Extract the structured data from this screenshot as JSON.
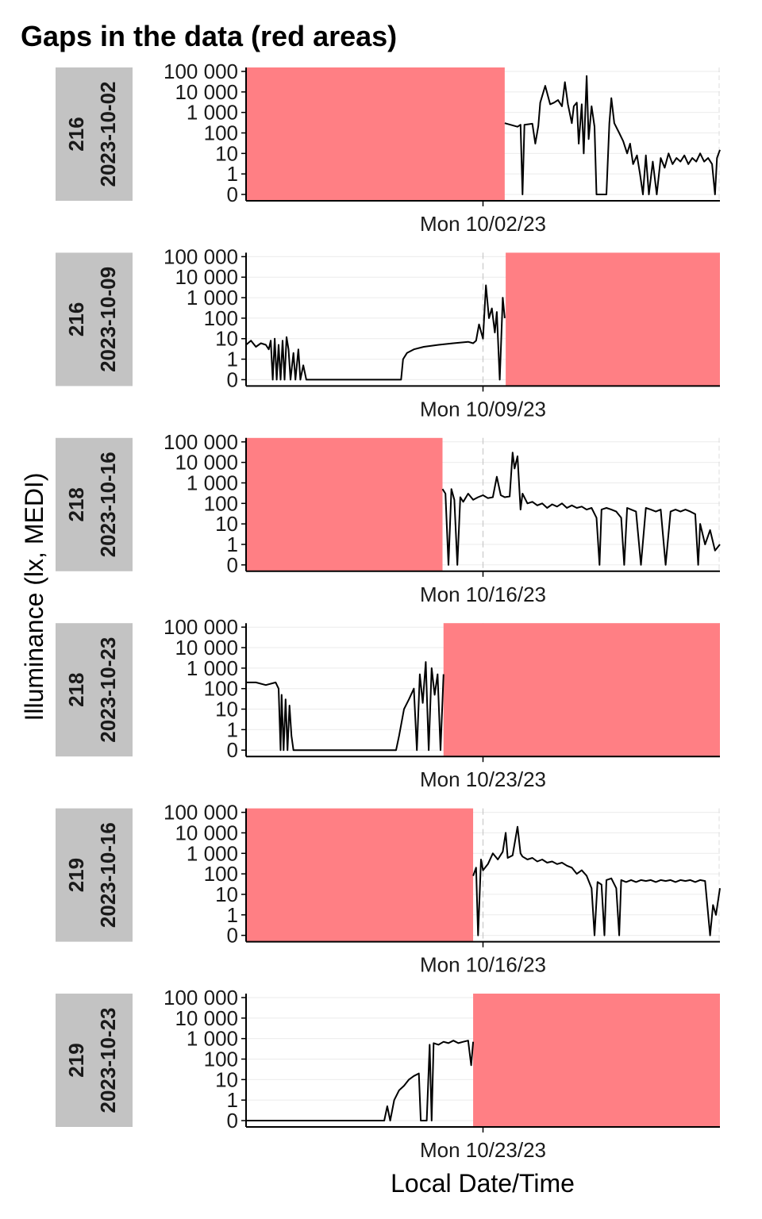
{
  "chart_data": {
    "type": "line",
    "title": "Gaps in the data (red areas)",
    "xlabel": "Local Date/Time",
    "ylabel": "Illuminance (lx, MEDI)",
    "y_scale": "symlog",
    "y_ticks": [
      {
        "value": 0,
        "label": "0"
      },
      {
        "value": 1,
        "label": "1"
      },
      {
        "value": 10,
        "label": "10"
      },
      {
        "value": 100,
        "label": "100"
      },
      {
        "value": 1000,
        "label": "1 000"
      },
      {
        "value": 10000,
        "label": "10 000"
      },
      {
        "value": 100000,
        "label": "100 000"
      }
    ],
    "x_unit": "hours since 00:00 of the week's Sunday",
    "x_range": [
      0,
      48
    ],
    "gap_color": "#ff7f84",
    "line_color": "#000000",
    "strip_color": "#c3c3c3",
    "panels": [
      {
        "id": "216",
        "week": "2023-10-02",
        "x_tick_label": "Mon 10/02/23",
        "x_tick": 24,
        "gaps": [
          [
            0,
            26.2
          ]
        ],
        "series": [
          [
            26.2,
            300
          ],
          [
            27.5,
            200
          ],
          [
            27.8,
            250
          ],
          [
            28.0,
            0
          ],
          [
            28.2,
            250
          ],
          [
            29.0,
            280
          ],
          [
            29.3,
            30
          ],
          [
            29.6,
            220
          ],
          [
            29.8,
            3000
          ],
          [
            30.3,
            20000
          ],
          [
            30.8,
            2500
          ],
          [
            31.2,
            3000
          ],
          [
            31.6,
            4000
          ],
          [
            32.0,
            2000
          ],
          [
            32.3,
            30000
          ],
          [
            32.6,
            2500
          ],
          [
            33.0,
            300
          ],
          [
            33.2,
            2000
          ],
          [
            33.5,
            3000
          ],
          [
            33.7,
            30
          ],
          [
            34.0,
            2500
          ],
          [
            34.2,
            10
          ],
          [
            34.5,
            60000
          ],
          [
            34.7,
            50
          ],
          [
            35.0,
            2000
          ],
          [
            35.3,
            200
          ],
          [
            35.5,
            0
          ],
          [
            36.5,
            0
          ],
          [
            36.8,
            300
          ],
          [
            37.0,
            5000
          ],
          [
            37.3,
            300
          ],
          [
            37.8,
            100
          ],
          [
            38.2,
            40
          ],
          [
            38.6,
            10
          ],
          [
            38.9,
            30
          ],
          [
            39.2,
            3
          ],
          [
            39.6,
            8
          ],
          [
            39.9,
            1
          ],
          [
            40.2,
            0
          ],
          [
            40.5,
            8
          ],
          [
            40.8,
            0
          ],
          [
            41.2,
            4
          ],
          [
            41.6,
            0
          ],
          [
            42.0,
            6
          ],
          [
            42.4,
            2
          ],
          [
            42.8,
            10
          ],
          [
            43.2,
            3
          ],
          [
            43.6,
            6
          ],
          [
            44.0,
            4
          ],
          [
            44.4,
            8
          ],
          [
            44.8,
            3
          ],
          [
            45.2,
            6
          ],
          [
            45.6,
            4
          ],
          [
            46.0,
            10
          ],
          [
            46.4,
            4
          ],
          [
            46.8,
            6
          ],
          [
            47.2,
            3
          ],
          [
            47.5,
            0
          ],
          [
            47.7,
            6
          ],
          [
            48.0,
            15
          ]
        ]
      },
      {
        "id": "216",
        "week": "2023-10-09",
        "x_tick_label": "Mon 10/09/23",
        "x_tick": 24,
        "gaps": [
          [
            26.3,
            48
          ]
        ],
        "series": [
          [
            0,
            5
          ],
          [
            0.5,
            8
          ],
          [
            1.0,
            4
          ],
          [
            1.5,
            6
          ],
          [
            2.0,
            5
          ],
          [
            2.3,
            3
          ],
          [
            2.5,
            8
          ],
          [
            2.7,
            0
          ],
          [
            2.9,
            10
          ],
          [
            3.1,
            0
          ],
          [
            3.3,
            5
          ],
          [
            3.5,
            0
          ],
          [
            3.7,
            8
          ],
          [
            3.9,
            0
          ],
          [
            4.1,
            12
          ],
          [
            4.3,
            3
          ],
          [
            4.5,
            0
          ],
          [
            4.8,
            2
          ],
          [
            5.0,
            0
          ],
          [
            5.3,
            3
          ],
          [
            5.5,
            0
          ],
          [
            5.8,
            0.5
          ],
          [
            6.1,
            0
          ],
          [
            6.5,
            0
          ],
          [
            15.7,
            0
          ],
          [
            15.9,
            1
          ],
          [
            16.3,
            2
          ],
          [
            17.0,
            3
          ],
          [
            18.0,
            4
          ],
          [
            19.5,
            5
          ],
          [
            21.0,
            6
          ],
          [
            22.5,
            7
          ],
          [
            23.0,
            6
          ],
          [
            23.3,
            8
          ],
          [
            23.6,
            50
          ],
          [
            24.0,
            10
          ],
          [
            24.3,
            4000
          ],
          [
            24.6,
            100
          ],
          [
            24.9,
            300
          ],
          [
            25.2,
            20
          ],
          [
            25.4,
            200
          ],
          [
            25.7,
            0
          ],
          [
            26.0,
            1000
          ],
          [
            26.2,
            100
          ]
        ]
      },
      {
        "id": "218",
        "week": "2023-10-16",
        "x_tick_label": "Mon 10/16/23",
        "x_tick": 24,
        "gaps": [
          [
            0,
            19.9
          ]
        ],
        "series": [
          [
            19.9,
            500
          ],
          [
            20.2,
            300
          ],
          [
            20.5,
            0
          ],
          [
            20.8,
            500
          ],
          [
            21.1,
            150
          ],
          [
            21.4,
            0
          ],
          [
            21.7,
            200
          ],
          [
            22.0,
            120
          ],
          [
            22.5,
            300
          ],
          [
            23.0,
            150
          ],
          [
            23.5,
            200
          ],
          [
            24.0,
            250
          ],
          [
            24.5,
            180
          ],
          [
            25.0,
            200
          ],
          [
            25.4,
            2000
          ],
          [
            25.8,
            250
          ],
          [
            26.2,
            200
          ],
          [
            26.7,
            220
          ],
          [
            27.0,
            30000
          ],
          [
            27.2,
            5000
          ],
          [
            27.5,
            20000
          ],
          [
            27.8,
            50
          ],
          [
            28.0,
            300
          ],
          [
            28.5,
            100
          ],
          [
            29.0,
            120
          ],
          [
            29.5,
            80
          ],
          [
            30.0,
            100
          ],
          [
            30.5,
            60
          ],
          [
            31.0,
            90
          ],
          [
            31.5,
            70
          ],
          [
            32.0,
            100
          ],
          [
            32.5,
            60
          ],
          [
            33.0,
            80
          ],
          [
            33.5,
            60
          ],
          [
            34.0,
            70
          ],
          [
            34.5,
            50
          ],
          [
            35.0,
            60
          ],
          [
            35.5,
            20
          ],
          [
            35.8,
            0
          ],
          [
            36.0,
            50
          ],
          [
            36.5,
            60
          ],
          [
            37.0,
            50
          ],
          [
            37.5,
            40
          ],
          [
            38.0,
            20
          ],
          [
            38.3,
            0
          ],
          [
            38.6,
            60
          ],
          [
            39.0,
            50
          ],
          [
            39.5,
            40
          ],
          [
            40.0,
            0
          ],
          [
            40.5,
            60
          ],
          [
            41.0,
            50
          ],
          [
            41.5,
            40
          ],
          [
            42.0,
            50
          ],
          [
            42.5,
            0
          ],
          [
            43.0,
            40
          ],
          [
            43.5,
            50
          ],
          [
            44.0,
            40
          ],
          [
            44.5,
            50
          ],
          [
            45.0,
            40
          ],
          [
            45.5,
            30
          ],
          [
            45.8,
            0
          ],
          [
            46.0,
            10
          ],
          [
            46.5,
            1
          ],
          [
            47.0,
            5
          ],
          [
            47.5,
            0.5
          ],
          [
            48.0,
            1
          ]
        ]
      },
      {
        "id": "218",
        "week": "2023-10-23",
        "x_tick_label": "Mon 10/23/23",
        "x_tick": 24,
        "gaps": [
          [
            20.0,
            48
          ]
        ],
        "series": [
          [
            0,
            200
          ],
          [
            1.0,
            200
          ],
          [
            2.0,
            150
          ],
          [
            3.0,
            200
          ],
          [
            3.3,
            100
          ],
          [
            3.5,
            0
          ],
          [
            3.6,
            50
          ],
          [
            3.8,
            0
          ],
          [
            4.0,
            30
          ],
          [
            4.2,
            0
          ],
          [
            4.4,
            15
          ],
          [
            4.6,
            0.5
          ],
          [
            4.8,
            0
          ],
          [
            5.0,
            0
          ],
          [
            15.2,
            0
          ],
          [
            15.5,
            0.5
          ],
          [
            16.0,
            10
          ],
          [
            16.5,
            30
          ],
          [
            17.0,
            100
          ],
          [
            17.3,
            0
          ],
          [
            17.6,
            500
          ],
          [
            17.9,
            20
          ],
          [
            18.2,
            2000
          ],
          [
            18.5,
            0
          ],
          [
            18.8,
            1000
          ],
          [
            19.1,
            50
          ],
          [
            19.4,
            500
          ],
          [
            19.7,
            0
          ],
          [
            20.0,
            500
          ]
        ]
      },
      {
        "id": "219",
        "week": "2023-10-16",
        "x_tick_label": "Mon 10/16/23",
        "x_tick": 24,
        "gaps": [
          [
            0,
            23.0
          ]
        ],
        "series": [
          [
            23.0,
            80
          ],
          [
            23.3,
            200
          ],
          [
            23.5,
            0
          ],
          [
            23.8,
            500
          ],
          [
            24.0,
            150
          ],
          [
            24.5,
            300
          ],
          [
            25.0,
            1000
          ],
          [
            25.5,
            500
          ],
          [
            26.0,
            1200
          ],
          [
            26.3,
            10000
          ],
          [
            26.5,
            600
          ],
          [
            27.0,
            800
          ],
          [
            27.5,
            20000
          ],
          [
            27.8,
            1000
          ],
          [
            28.0,
            700
          ],
          [
            28.5,
            500
          ],
          [
            29.0,
            600
          ],
          [
            29.5,
            400
          ],
          [
            30.0,
            500
          ],
          [
            30.5,
            350
          ],
          [
            31.0,
            400
          ],
          [
            31.5,
            300
          ],
          [
            32.0,
            350
          ],
          [
            32.5,
            250
          ],
          [
            33.0,
            200
          ],
          [
            33.5,
            100
          ],
          [
            34.0,
            150
          ],
          [
            34.5,
            80
          ],
          [
            35.0,
            20
          ],
          [
            35.3,
            0
          ],
          [
            35.6,
            40
          ],
          [
            36.0,
            30
          ],
          [
            36.3,
            0
          ],
          [
            36.5,
            50
          ],
          [
            37.0,
            60
          ],
          [
            37.5,
            20
          ],
          [
            37.8,
            0
          ],
          [
            38.0,
            50
          ],
          [
            38.5,
            40
          ],
          [
            39.0,
            50
          ],
          [
            39.5,
            40
          ],
          [
            40.0,
            50
          ],
          [
            40.5,
            45
          ],
          [
            41.0,
            50
          ],
          [
            41.5,
            40
          ],
          [
            42.0,
            50
          ],
          [
            42.5,
            45
          ],
          [
            43.0,
            50
          ],
          [
            43.5,
            40
          ],
          [
            44.0,
            50
          ],
          [
            44.5,
            45
          ],
          [
            45.0,
            50
          ],
          [
            45.5,
            40
          ],
          [
            46.0,
            50
          ],
          [
            46.5,
            45
          ],
          [
            47.0,
            0
          ],
          [
            47.3,
            3
          ],
          [
            47.6,
            1
          ],
          [
            48.0,
            20
          ]
        ]
      },
      {
        "id": "219",
        "week": "2023-10-23",
        "x_tick_label": "Mon 10/23/23",
        "x_tick": 24,
        "gaps": [
          [
            23.0,
            48
          ]
        ],
        "series": [
          [
            0,
            0
          ],
          [
            14.0,
            0
          ],
          [
            14.3,
            0.5
          ],
          [
            14.6,
            0
          ],
          [
            15.0,
            1
          ],
          [
            15.5,
            3
          ],
          [
            16.0,
            5
          ],
          [
            16.5,
            10
          ],
          [
            17.0,
            15
          ],
          [
            17.5,
            20
          ],
          [
            17.7,
            0
          ],
          [
            18.0,
            0
          ],
          [
            18.3,
            0
          ],
          [
            18.6,
            500
          ],
          [
            18.8,
            0
          ],
          [
            19.0,
            600
          ],
          [
            19.5,
            500
          ],
          [
            20.0,
            700
          ],
          [
            20.5,
            600
          ],
          [
            21.0,
            800
          ],
          [
            21.5,
            600
          ],
          [
            22.0,
            700
          ],
          [
            22.5,
            800
          ],
          [
            22.8,
            50
          ],
          [
            23.0,
            700
          ]
        ]
      }
    ]
  }
}
